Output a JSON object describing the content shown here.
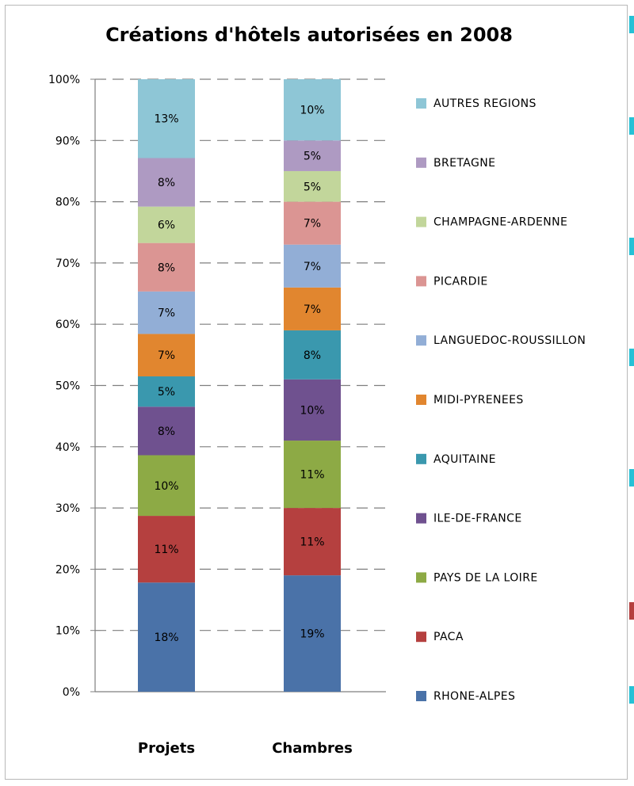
{
  "chart_data": {
    "type": "bar",
    "stacked": true,
    "title": "Créations d'hôtels autorisées en 2008",
    "categories": [
      "Projets",
      "Chambres"
    ],
    "ylim": [
      0,
      100
    ],
    "y_ticks": [
      "0%",
      "10%",
      "20%",
      "30%",
      "40%",
      "50%",
      "60%",
      "70%",
      "80%",
      "90%",
      "100%"
    ],
    "grid": "dashed horizontal",
    "legend_position": "right",
    "series": [
      {
        "name": "RHONE-ALPES",
        "color": "#4A72A8",
        "values": [
          18,
          19
        ],
        "labels": [
          "18%",
          "19%"
        ]
      },
      {
        "name": "PACA",
        "color": "#B5403F",
        "values": [
          11,
          11
        ],
        "labels": [
          "11%",
          "11%"
        ]
      },
      {
        "name": "PAYS DE LA LOIRE",
        "color": "#8DAA45",
        "values": [
          10,
          11
        ],
        "labels": [
          "10%",
          "11%"
        ]
      },
      {
        "name": "ILE-DE-FRANCE",
        "color": "#6F518F",
        "values": [
          8,
          10
        ],
        "labels": [
          "8%",
          "10%"
        ]
      },
      {
        "name": "AQUITAINE",
        "color": "#3A98AE",
        "values": [
          5,
          8
        ],
        "labels": [
          "5%",
          "8%"
        ]
      },
      {
        "name": "MIDI-PYRENEES",
        "color": "#E1862F",
        "values": [
          7,
          7
        ],
        "labels": [
          "7%",
          "7%"
        ]
      },
      {
        "name": "LANGUEDOC-ROUSSILLON",
        "color": "#92AED6",
        "values": [
          7,
          7
        ],
        "labels": [
          "7%",
          "7%"
        ]
      },
      {
        "name": "PICARDIE",
        "color": "#DB9593",
        "values": [
          8,
          7
        ],
        "labels": [
          "8%",
          "7%"
        ]
      },
      {
        "name": "CHAMPAGNE-ARDENNE",
        "color": "#C2D69B",
        "values": [
          6,
          5
        ],
        "labels": [
          "6%",
          "5%"
        ]
      },
      {
        "name": "BRETAGNE",
        "color": "#AE9AC2",
        "values": [
          8,
          5
        ],
        "labels": [
          "8%",
          "5%"
        ]
      },
      {
        "name": "AUTRES REGIONS",
        "color": "#8EC6D6",
        "values": [
          13,
          10
        ],
        "labels": [
          "13%",
          "10%"
        ]
      }
    ]
  }
}
